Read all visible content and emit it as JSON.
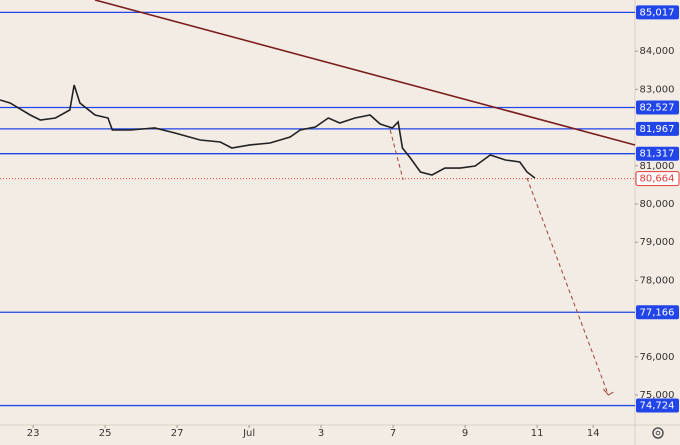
{
  "chart_data": {
    "type": "line",
    "xlim": [
      -0.46,
      8.36
    ],
    "ylim": [
      74215,
      85340
    ],
    "xticks": [
      {
        "value": 0,
        "label": "23"
      },
      {
        "value": 1,
        "label": "25"
      },
      {
        "value": 2,
        "label": "27"
      },
      {
        "value": 3,
        "label": "Jul"
      },
      {
        "value": 4,
        "label": "3"
      },
      {
        "value": 5,
        "label": "7"
      },
      {
        "value": 6,
        "label": "9"
      },
      {
        "value": 7,
        "label": "11"
      },
      {
        "value": 7.78,
        "label": "14"
      }
    ],
    "yticks": [
      {
        "value": 75000,
        "label": "75,000"
      },
      {
        "value": 76000,
        "label": "76,000"
      },
      {
        "value": 78000,
        "label": "78,000"
      },
      {
        "value": 79000,
        "label": "79,000"
      },
      {
        "value": 80000,
        "label": "80,000"
      },
      {
        "value": 81000,
        "label": "81,000"
      },
      {
        "value": 83000,
        "label": "83,000"
      },
      {
        "value": 84000,
        "label": "84,000"
      }
    ],
    "price": {
      "color": "#222222",
      "x": [
        -0.46,
        -0.32,
        -0.04,
        0.1,
        0.31,
        0.51,
        0.57,
        0.65,
        0.86,
        1.04,
        1.1,
        1.35,
        1.69,
        1.97,
        2.32,
        2.6,
        2.76,
        3.01,
        3.29,
        3.57,
        3.71,
        3.92,
        4.1,
        4.26,
        4.47,
        4.68,
        4.82,
        4.99,
        5.07,
        5.13,
        5.24,
        5.38,
        5.54,
        5.72,
        5.93,
        6.14,
        6.35,
        6.56,
        6.76,
        6.86,
        6.97
      ],
      "values": [
        82723,
        82644,
        82330,
        82199,
        82251,
        82461,
        83115,
        82644,
        82330,
        82251,
        81937,
        81937,
        81990,
        81859,
        81675,
        81623,
        81466,
        81545,
        81597,
        81754,
        81937,
        82016,
        82251,
        82120,
        82251,
        82330,
        82094,
        81990,
        82147,
        81466,
        81204,
        80838,
        80759,
        80942,
        80942,
        80995,
        81283,
        81152,
        81099,
        80838,
        80681
      ]
    },
    "levels": [
      {
        "value": 85017,
        "label": "85,017"
      },
      {
        "value": 82527,
        "label": "82,527"
      },
      {
        "value": 81967,
        "label": "81,967"
      },
      {
        "value": 81317,
        "label": "81,317"
      },
      {
        "value": 77166,
        "label": "77,166"
      },
      {
        "value": 74724,
        "label": "74,724"
      }
    ],
    "level_color": "#2145e8",
    "last_price": {
      "value": 80664,
      "label": "80,664",
      "color": "#e53935"
    },
    "trend_line": {
      "x": [
        0.86,
        8.36
      ],
      "values": [
        85340,
        81545
      ],
      "color": "#7b1c1c"
    },
    "projections": [
      {
        "x": [
          4.96,
          5.14
        ],
        "values": [
          81937,
          80628
        ]
      },
      {
        "x": [
          6.86,
          7.99
        ],
        "values": [
          80681,
          75000
        ]
      }
    ],
    "projection_color": "#a0413a"
  }
}
